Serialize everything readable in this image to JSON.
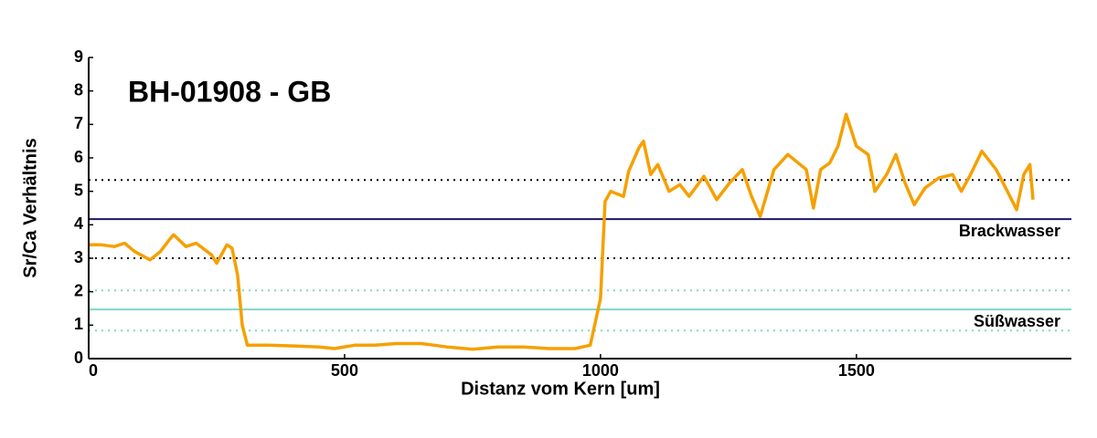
{
  "chart_data": {
    "type": "line",
    "title": "BH-01908 - GB",
    "xlabel": "Distanz vom Kern [um]",
    "ylabel": "Sr/Ca Verhältnis",
    "xlim": [
      0,
      1920
    ],
    "ylim": [
      0,
      9
    ],
    "xticks": [
      0,
      500,
      1000,
      1500
    ],
    "yticks": [
      0,
      1,
      2,
      3,
      4,
      5,
      6,
      7,
      8,
      9
    ],
    "grid": false,
    "reference_lines": [
      {
        "value": 5.34,
        "color": "#000000",
        "style": "dotted"
      },
      {
        "value": 4.17,
        "color": "#1a1a66",
        "style": "solid",
        "label": "Brackwasser"
      },
      {
        "value": 3.0,
        "color": "#000000",
        "style": "dotted"
      },
      {
        "value": 2.04,
        "color": "#7fd8c8",
        "style": "dotted"
      },
      {
        "value": 1.47,
        "color": "#7fd8c8",
        "style": "solid",
        "label": "Süßwasser"
      },
      {
        "value": 0.84,
        "color": "#7fd8c8",
        "style": "dotted"
      }
    ],
    "series": [
      {
        "color": "#f5a000",
        "x": [
          0,
          25,
          50,
          70,
          90,
          120,
          140,
          160,
          166,
          190,
          210,
          240,
          250,
          270,
          280,
          291,
          300,
          310,
          350,
          400,
          450,
          480,
          520,
          560,
          600,
          650,
          700,
          750,
          800,
          850,
          900,
          950,
          980,
          1000,
          1009,
          1020,
          1045,
          1055,
          1075,
          1084,
          1098,
          1112,
          1134,
          1155,
          1173,
          1202,
          1227,
          1252,
          1277,
          1295,
          1312,
          1339,
          1366,
          1402,
          1416,
          1430,
          1448,
          1464,
          1480,
          1500,
          1523,
          1536,
          1559,
          1577,
          1595,
          1613,
          1634,
          1661,
          1688,
          1705,
          1723,
          1745,
          1773,
          1795,
          1813,
          1827,
          1839,
          1845
        ],
        "values": [
          3.4,
          3.4,
          3.35,
          3.45,
          3.2,
          2.95,
          3.2,
          3.6,
          3.7,
          3.35,
          3.45,
          3.1,
          2.85,
          3.4,
          3.3,
          2.5,
          1.0,
          0.4,
          0.4,
          0.38,
          0.35,
          0.3,
          0.4,
          0.4,
          0.45,
          0.45,
          0.35,
          0.28,
          0.35,
          0.35,
          0.3,
          0.3,
          0.4,
          1.8,
          4.7,
          5.0,
          4.85,
          5.6,
          6.3,
          6.5,
          5.5,
          5.8,
          5.0,
          5.2,
          4.85,
          5.45,
          4.75,
          5.25,
          5.65,
          4.85,
          4.25,
          5.65,
          6.1,
          5.65,
          4.5,
          5.65,
          5.85,
          6.35,
          7.3,
          6.35,
          6.1,
          5.0,
          5.5,
          6.1,
          5.25,
          4.6,
          5.1,
          5.4,
          5.5,
          5.0,
          5.5,
          6.2,
          5.65,
          5.0,
          4.45,
          5.5,
          5.8,
          4.75
        ]
      }
    ]
  }
}
